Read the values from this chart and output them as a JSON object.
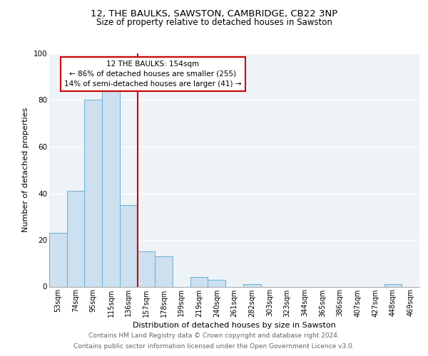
{
  "title": "12, THE BAULKS, SAWSTON, CAMBRIDGE, CB22 3NP",
  "subtitle": "Size of property relative to detached houses in Sawston",
  "xlabel": "Distribution of detached houses by size in Sawston",
  "ylabel": "Number of detached properties",
  "bar_labels": [
    "53sqm",
    "74sqm",
    "95sqm",
    "115sqm",
    "136sqm",
    "157sqm",
    "178sqm",
    "199sqm",
    "219sqm",
    "240sqm",
    "261sqm",
    "282sqm",
    "303sqm",
    "323sqm",
    "344sqm",
    "365sqm",
    "386sqm",
    "407sqm",
    "427sqm",
    "448sqm",
    "469sqm"
  ],
  "bar_values": [
    23,
    41,
    80,
    84,
    35,
    15,
    13,
    0,
    4,
    3,
    0,
    1,
    0,
    0,
    0,
    0,
    0,
    0,
    0,
    1,
    0
  ],
  "bar_color": "#cce0f0",
  "bar_edge_color": "#6aaed6",
  "vline_color": "#cc0000",
  "annotation_box_color": "#cc0000",
  "annotation_box_text": "12 THE BAULKS: 154sqm\n← 86% of detached houses are smaller (255)\n14% of semi-detached houses are larger (41) →",
  "ylim": [
    0,
    100
  ],
  "yticks": [
    0,
    20,
    40,
    60,
    80,
    100
  ],
  "bg_color": "#eef3f8",
  "footer_line1": "Contains HM Land Registry data © Crown copyright and database right 2024.",
  "footer_line2": "Contains public sector information licensed under the Open Government Licence v3.0.",
  "title_fontsize": 9.5,
  "subtitle_fontsize": 8.5,
  "axis_label_fontsize": 8,
  "tick_fontsize": 7,
  "annot_fontsize": 7.5,
  "footer_fontsize": 6.5
}
